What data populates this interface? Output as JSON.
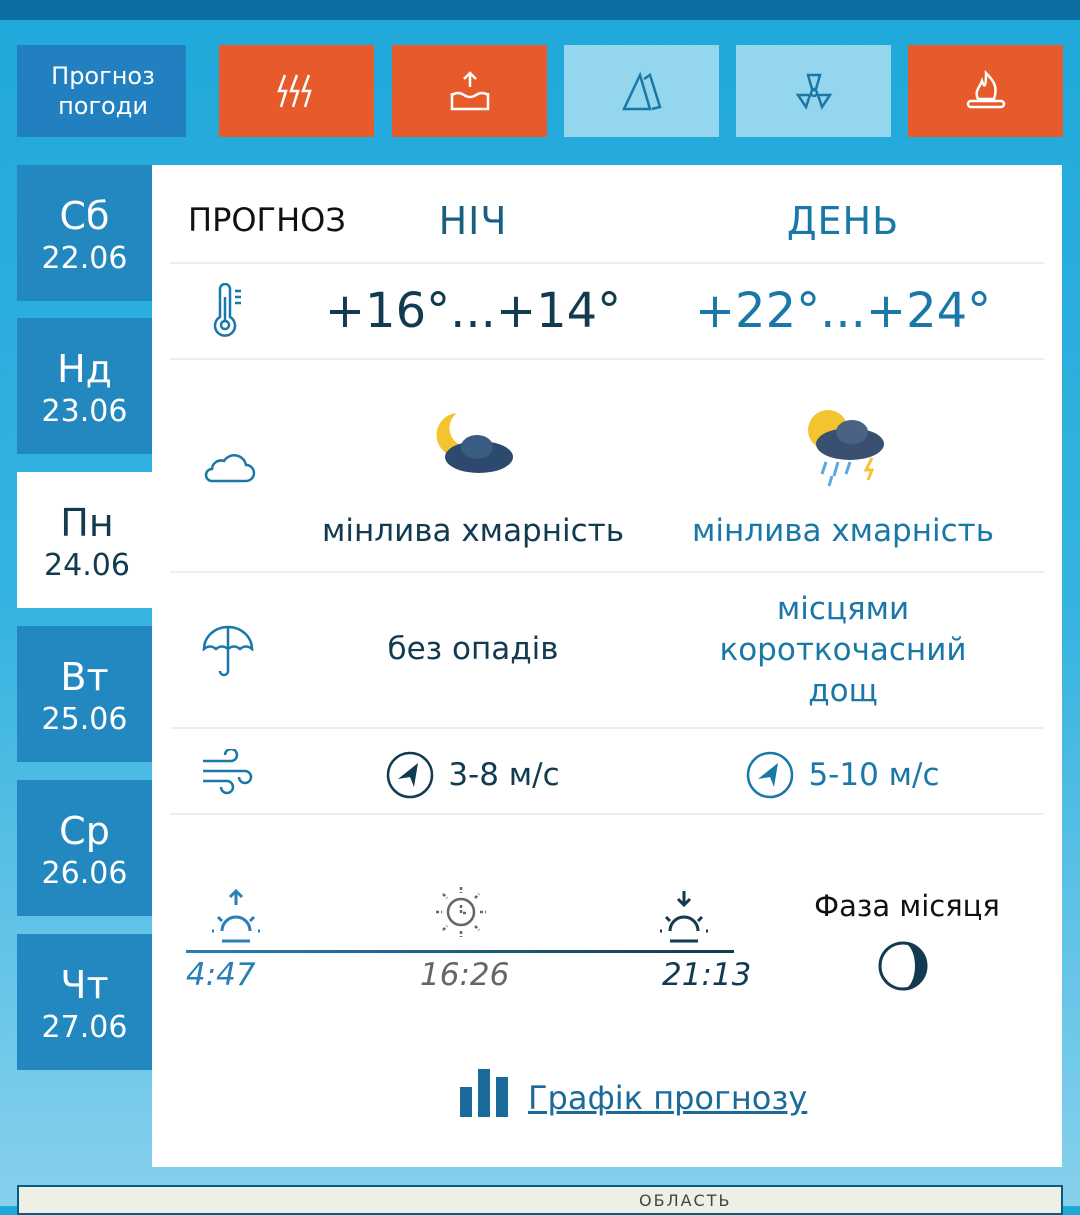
{
  "header": {
    "title": "Прогноз погоди",
    "hazards": [
      {
        "icon": "lightning-icon",
        "active": true
      },
      {
        "icon": "flood-icon",
        "active": true
      },
      {
        "icon": "avalanche-icon",
        "active": false
      },
      {
        "icon": "radiation-icon",
        "active": false
      },
      {
        "icon": "fire-icon",
        "active": true
      }
    ]
  },
  "days": [
    {
      "name": "Сб",
      "date": "22.06"
    },
    {
      "name": "Нд",
      "date": "23.06"
    },
    {
      "name": "Пн",
      "date": "24.06",
      "active": true
    },
    {
      "name": "Вт",
      "date": "25.06"
    },
    {
      "name": "Ср",
      "date": "26.06"
    },
    {
      "name": "Чт",
      "date": "27.06"
    }
  ],
  "forecast": {
    "label": "ПРОГНОЗ",
    "night_label": "НІЧ",
    "day_label": "ДЕНЬ",
    "temp": {
      "night": "+16°...+14°",
      "day": "+22°...+24°"
    },
    "cloud": {
      "night": "мінлива хмарність",
      "day": "мінлива хмарність"
    },
    "precip": {
      "night": "без опадів",
      "day": "місцями короткочасний дощ"
    },
    "wind": {
      "night": "3-8 м/с",
      "day": "5-10 м/с"
    }
  },
  "sun": {
    "sunrise": "4:47",
    "day_length": "16:26",
    "sunset": "21:13",
    "moon_label": "Фаза місяця"
  },
  "chart_link": "Графік прогнозу",
  "map": {
    "label": "ОБЛАСТЬ"
  },
  "colors": {
    "orange": "#e65a2c",
    "light": "#93d6ee",
    "night": "#123a50",
    "day": "#1a78a8"
  }
}
